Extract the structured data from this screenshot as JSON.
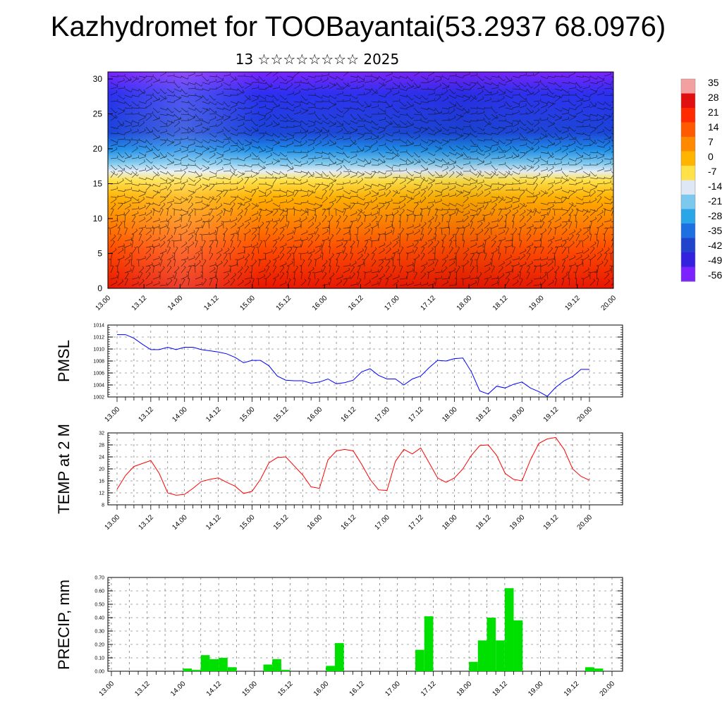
{
  "title": "Kazhydromet for TOOBayantai(53.2937 68.0976)",
  "subtitle": "13 ☆☆☆☆☆☆☆☆ 2025",
  "x_tick_labels": [
    "13.00",
    "13.12",
    "14.00",
    "14.12",
    "15.00",
    "15.12",
    "16.00",
    "16.12",
    "17.00",
    "17.12",
    "18.00",
    "18.12",
    "19.00",
    "19.12",
    "20.00"
  ],
  "colors": {
    "pmsl_line": "#0000ff",
    "temp_line": "#ff0000",
    "precip_bar": "#00e000"
  },
  "chart_data": [
    {
      "type": "heatmap",
      "ylim": [
        0,
        30
      ],
      "y_ticks": [
        0,
        5,
        10,
        15,
        20,
        25,
        30
      ],
      "colorbar_labels": [
        "35",
        "28",
        "21",
        "14",
        "7",
        "0",
        "-7",
        "-14",
        "-21",
        "-28",
        "-35",
        "-42",
        "-49",
        "-56"
      ],
      "colorbar_colors": [
        "#f3a0a0",
        "#e01010",
        "#ff2a00",
        "#ff5a00",
        "#ff8a00",
        "#ffb400",
        "#ffe24a",
        "#dde8f4",
        "#7cc8ee",
        "#2aa6e8",
        "#1e6fe0",
        "#2244cc",
        "#3322dd",
        "#7a22ff"
      ]
    },
    {
      "type": "line",
      "ylabel": "PMSL",
      "ylim": [
        1002,
        1014
      ],
      "y_ticks": [
        1002,
        1004,
        1006,
        1008,
        1010,
        1012,
        1014
      ],
      "x": [
        0,
        3,
        6,
        9,
        12,
        15,
        18,
        21,
        24,
        27,
        30,
        33,
        36,
        39,
        42,
        45,
        48,
        51,
        54,
        57,
        60,
        63,
        66,
        69,
        72,
        75,
        78,
        81,
        84,
        87,
        90,
        93,
        96,
        99,
        102,
        105,
        108,
        111,
        114,
        117,
        120,
        123,
        126,
        129,
        132,
        135,
        138,
        141,
        144,
        147,
        150,
        153,
        156,
        159,
        162,
        165,
        168
      ],
      "values": [
        1012.4,
        1012.4,
        1011.8,
        1010.8,
        1009.9,
        1009.9,
        1010.3,
        1009.9,
        1010.3,
        1010.3,
        1009.9,
        1009.7,
        1009.5,
        1009.2,
        1008.6,
        1007.7,
        1008.1,
        1008.1,
        1007.2,
        1005.5,
        1004.8,
        1004.7,
        1004.7,
        1004.3,
        1004.5,
        1005.0,
        1004.2,
        1004.4,
        1004.8,
        1006.2,
        1006.7,
        1005.6,
        1005.0,
        1005.0,
        1004.0,
        1005.0,
        1005.5,
        1006.9,
        1008.1,
        1008.0,
        1008.4,
        1008.5,
        1006.2,
        1003.0,
        1002.5,
        1003.8,
        1003.5,
        1004.1,
        1004.5,
        1003.5,
        1002.9,
        1002.1,
        1003.6,
        1004.7,
        1005.4,
        1006.6,
        1006.6
      ]
    },
    {
      "type": "line",
      "ylabel": "TEMP at 2 M",
      "ylim": [
        8,
        32
      ],
      "y_ticks": [
        8,
        12,
        16,
        20,
        24,
        28,
        32
      ],
      "x": [
        0,
        3,
        6,
        9,
        12,
        15,
        18,
        21,
        24,
        27,
        30,
        33,
        36,
        39,
        42,
        45,
        48,
        51,
        54,
        57,
        60,
        63,
        66,
        69,
        72,
        75,
        78,
        81,
        84,
        87,
        90,
        93,
        96,
        99,
        102,
        105,
        108,
        111,
        114,
        117,
        120,
        123,
        126,
        129,
        132,
        135,
        138,
        141,
        144,
        147,
        150,
        153,
        156,
        159,
        162,
        165,
        168
      ],
      "values": [
        13.2,
        17.8,
        20.8,
        21.8,
        22.8,
        18.5,
        12.0,
        11.2,
        11.5,
        13.5,
        15.8,
        16.5,
        17.0,
        15.5,
        14.2,
        11.8,
        12.5,
        16.5,
        22.0,
        23.8,
        24.0,
        21.0,
        18.0,
        14.0,
        13.5,
        23.0,
        26.0,
        26.5,
        26.0,
        21.5,
        16.5,
        13.0,
        12.8,
        22.5,
        26.5,
        25.0,
        27.0,
        22.0,
        17.0,
        15.5,
        17.0,
        20.0,
        24.5,
        27.8,
        28.0,
        24.5,
        18.5,
        16.5,
        16.0,
        23.0,
        28.5,
        30.0,
        30.5,
        26.5,
        20.0,
        17.5,
        16.2
      ]
    },
    {
      "type": "bar",
      "ylabel": "PRECIP, mm",
      "ylim": [
        0,
        0.7
      ],
      "y_ticks": [
        "0.00",
        "0.10",
        "0.20",
        "0.30",
        "0.40",
        "0.50",
        "0.60",
        "0.70"
      ],
      "x": [
        24,
        27,
        30,
        33,
        36,
        39,
        51,
        54,
        57,
        72,
        75,
        102,
        105,
        120,
        123,
        126,
        129,
        132,
        135,
        159,
        162
      ],
      "values": [
        0.02,
        0.01,
        0.12,
        0.09,
        0.1,
        0.03,
        0.05,
        0.09,
        0.01,
        0.04,
        0.21,
        0.16,
        0.41,
        0.07,
        0.23,
        0.4,
        0.23,
        0.62,
        0.38,
        0.03,
        0.02
      ]
    }
  ]
}
